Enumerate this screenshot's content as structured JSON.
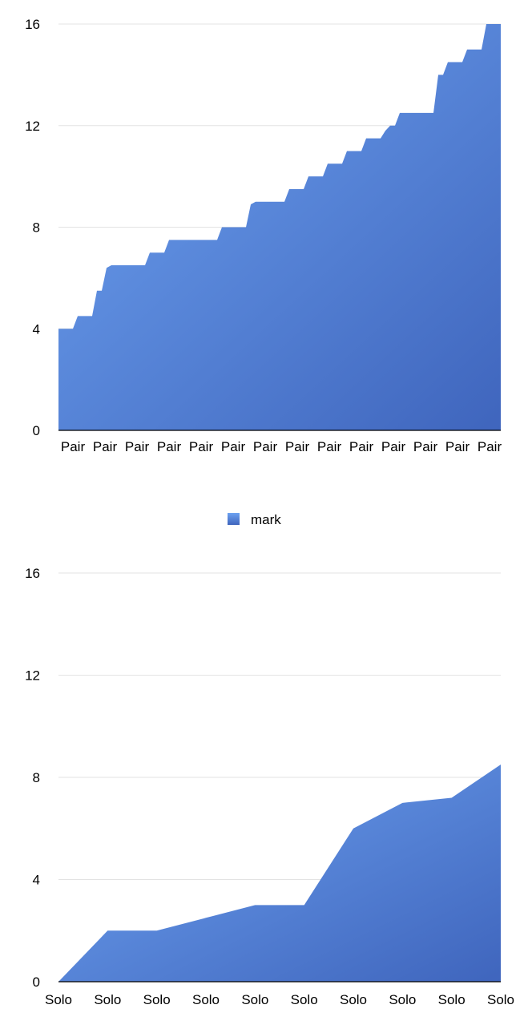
{
  "chart_data": [
    {
      "type": "area",
      "series": [
        {
          "name": "mark",
          "values": [
            4,
            4,
            4,
            4,
            4.5,
            4.5,
            4.5,
            4.5,
            5.5,
            5.5,
            6.4,
            6.5,
            6.5,
            6.5,
            6.5,
            6.5,
            6.5,
            6.5,
            6.5,
            7,
            7,
            7,
            7,
            7.5,
            7.5,
            7.5,
            7.5,
            7.5,
            7.5,
            7.5,
            7.5,
            7.5,
            7.5,
            7.5,
            8,
            8,
            8,
            8,
            8,
            8,
            8.9,
            9,
            9,
            9,
            9,
            9,
            9,
            9,
            9.5,
            9.5,
            9.5,
            9.5,
            10,
            10,
            10,
            10,
            10.5,
            10.5,
            10.5,
            10.5,
            11,
            11,
            11,
            11,
            11.5,
            11.5,
            11.5,
            11.5,
            11.8,
            12,
            12,
            12.5,
            12.5,
            12.5,
            12.5,
            12.5,
            12.5,
            12.5,
            12.5,
            14,
            14,
            14.5,
            14.5,
            14.5,
            14.5,
            15,
            15,
            15,
            15,
            16,
            16,
            16,
            16
          ]
        }
      ],
      "x_tick_labels": [
        "Pair",
        "Pair",
        "Pair",
        "Pair",
        "Pair",
        "Pair",
        "Pair",
        "Pair",
        "Pair",
        "Pair",
        "Pair",
        "Pair",
        "Pair",
        "Pair"
      ],
      "y_ticks": [
        "0",
        "4",
        "8",
        "12",
        "16"
      ],
      "ylim": [
        0,
        16
      ],
      "grid": true,
      "legend": {
        "entries": [
          "mark"
        ],
        "placement": "bottom-center"
      },
      "color_top": "#6ea3f1",
      "color_bottom": "#3f65bd"
    },
    {
      "type": "area",
      "categories": [
        "Solo",
        "Solo",
        "Solo",
        "Solo",
        "Solo",
        "Solo",
        "Solo",
        "Solo",
        "Solo",
        "Solo"
      ],
      "series": [
        {
          "values": [
            0,
            2,
            2,
            2.5,
            3,
            3,
            6,
            7,
            7.2,
            8.5
          ]
        }
      ],
      "y_ticks": [
        "0",
        "4",
        "8",
        "12",
        "16"
      ],
      "ylim": [
        0,
        16
      ],
      "grid": true,
      "color_top": "#6ea3f1",
      "color_bottom": "#3f65bd"
    }
  ]
}
